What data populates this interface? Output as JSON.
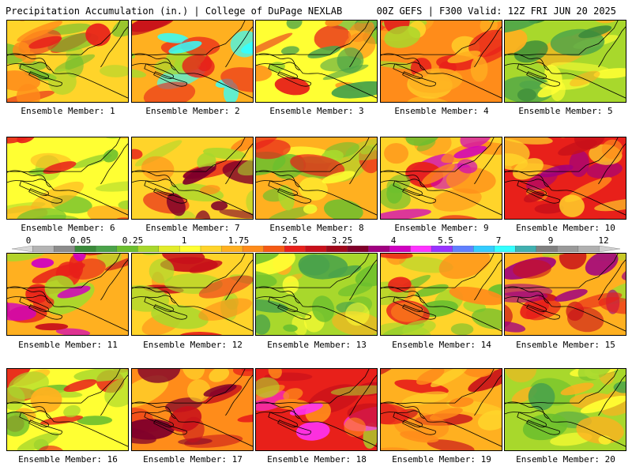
{
  "header": {
    "left": "Precipitation Accumulation (in.) | College of DuPage NEXLAB",
    "right": "00Z GEFS | F300 Valid: 12Z FRI JUN 20 2025"
  },
  "colorbar": {
    "labels": [
      "0",
      "0.05",
      "0.25",
      "1",
      "1.75",
      "2.5",
      "3.25",
      "4",
      "5.5",
      "7",
      "9",
      "12"
    ],
    "colors": [
      "#d8d8d8",
      "#b4b4b4",
      "#8c8c8c",
      "#3a8a3a",
      "#4aa34a",
      "#6cbf2e",
      "#a8d82c",
      "#e2ec2a",
      "#ffff33",
      "#ffd42a",
      "#ffb020",
      "#ff8c1a",
      "#f55a14",
      "#e8201a",
      "#c8101a",
      "#a0081a",
      "#80002a",
      "#a00080",
      "#d000c0",
      "#ff33ff",
      "#9933ff",
      "#6080ff",
      "#33ccff",
      "#33ffff",
      "#40b0b0",
      "#808080",
      "#999999",
      "#b0b0b0",
      "#d0d0d0"
    ]
  },
  "members": [
    {
      "caption": "Ensemble Member: 1",
      "palette": [
        "#ffd42a",
        "#ff8c1a",
        "#6cbf2e",
        "#a8d82c",
        "#e8201a"
      ]
    },
    {
      "caption": "Ensemble Member: 2",
      "palette": [
        "#ffb020",
        "#e8201a",
        "#a8d82c",
        "#c8101a",
        "#33ffff"
      ]
    },
    {
      "caption": "Ensemble Member: 3",
      "palette": [
        "#ffff33",
        "#6cbf2e",
        "#ff8c1a",
        "#e8201a",
        "#4aa34a"
      ]
    },
    {
      "caption": "Ensemble Member: 4",
      "palette": [
        "#ff8c1a",
        "#ffd42a",
        "#e8201a",
        "#a8d82c",
        "#ffb020"
      ]
    },
    {
      "caption": "Ensemble Member: 5",
      "palette": [
        "#a8d82c",
        "#4aa34a",
        "#ffff33",
        "#ffb020",
        "#3a8a3a"
      ]
    },
    {
      "caption": "Ensemble Member: 6",
      "palette": [
        "#ffff33",
        "#a8d82c",
        "#ffb020",
        "#6cbf2e",
        "#e8201a"
      ]
    },
    {
      "caption": "Ensemble Member: 7",
      "palette": [
        "#ffd42a",
        "#ff8c1a",
        "#e8201a",
        "#a8d82c",
        "#80002a"
      ]
    },
    {
      "caption": "Ensemble Member: 8",
      "palette": [
        "#ffb020",
        "#a8d82c",
        "#6cbf2e",
        "#e8201a",
        "#ffff33"
      ]
    },
    {
      "caption": "Ensemble Member: 9",
      "palette": [
        "#ffd42a",
        "#e8201a",
        "#ff8c1a",
        "#6cbf2e",
        "#d000c0"
      ]
    },
    {
      "caption": "Ensemble Member: 10",
      "palette": [
        "#e8201a",
        "#ff8c1a",
        "#c8101a",
        "#ffd42a",
        "#a00080"
      ]
    },
    {
      "caption": "Ensemble Member: 11",
      "palette": [
        "#ffb020",
        "#e8201a",
        "#a8d82c",
        "#c8101a",
        "#d000c0"
      ]
    },
    {
      "caption": "Ensemble Member: 12",
      "palette": [
        "#ffd42a",
        "#ff8c1a",
        "#e8201a",
        "#a8d82c",
        "#c8101a"
      ]
    },
    {
      "caption": "Ensemble Member: 13",
      "palette": [
        "#a8d82c",
        "#ffff33",
        "#6cbf2e",
        "#ffb020",
        "#4aa34a"
      ]
    },
    {
      "caption": "Ensemble Member: 14",
      "palette": [
        "#ffd42a",
        "#ff8c1a",
        "#a8d82c",
        "#e8201a",
        "#6cbf2e"
      ]
    },
    {
      "caption": "Ensemble Member: 15",
      "palette": [
        "#ffb020",
        "#e8201a",
        "#a8d82c",
        "#c8101a",
        "#a00080"
      ]
    },
    {
      "caption": "Ensemble Member: 16",
      "palette": [
        "#ffff33",
        "#ffb020",
        "#a8d82c",
        "#6cbf2e",
        "#e8201a"
      ]
    },
    {
      "caption": "Ensemble Member: 17",
      "palette": [
        "#ff8c1a",
        "#e8201a",
        "#ffd42a",
        "#c8101a",
        "#80002a"
      ]
    },
    {
      "caption": "Ensemble Member: 18",
      "palette": [
        "#e8201a",
        "#ff8c1a",
        "#c8101a",
        "#a8d82c",
        "#ff33ff"
      ]
    },
    {
      "caption": "Ensemble Member: 19",
      "palette": [
        "#ffb020",
        "#e8201a",
        "#ffd42a",
        "#c8101a",
        "#ff8c1a"
      ]
    },
    {
      "caption": "Ensemble Member: 20",
      "palette": [
        "#a8d82c",
        "#ffff33",
        "#6cbf2e",
        "#4aa34a",
        "#ffb020"
      ]
    }
  ]
}
